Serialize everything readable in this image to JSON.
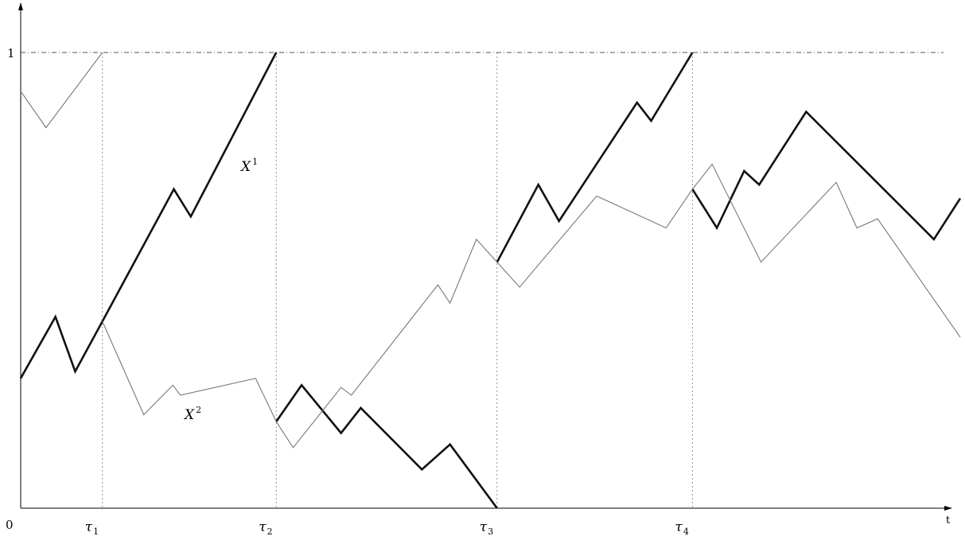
{
  "chart_data": {
    "type": "line",
    "xlabel": "t",
    "ylabel": "",
    "origin_label": "0",
    "y_tick_label": "1",
    "xlim": [
      0,
      1.0
    ],
    "ylim": [
      0,
      1.0
    ],
    "stopping_times": [
      {
        "label": "τ",
        "index": "1",
        "x": 0.087
      },
      {
        "label": "τ",
        "index": "2",
        "x": 0.272
      },
      {
        "label": "τ",
        "index": "3",
        "x": 0.507
      },
      {
        "label": "τ",
        "index": "4",
        "x": 0.715
      }
    ],
    "threshold_line": {
      "y": 1.0,
      "style": "dash-dot"
    },
    "series": [
      {
        "name": "X",
        "name_sup": "1",
        "style": "thick",
        "segments": [
          [
            [
              0.0,
              0.285
            ],
            [
              0.037,
              0.42
            ],
            [
              0.058,
              0.3
            ],
            [
              0.087,
              0.41
            ],
            [
              0.163,
              0.7
            ],
            [
              0.181,
              0.64
            ],
            [
              0.272,
              1.0
            ]
          ],
          [
            [
              0.272,
              0.19
            ],
            [
              0.299,
              0.27
            ],
            [
              0.341,
              0.165
            ],
            [
              0.362,
              0.22
            ],
            [
              0.427,
              0.085
            ],
            [
              0.457,
              0.14
            ],
            [
              0.507,
              0.0
            ]
          ],
          [
            [
              0.507,
              0.54
            ],
            [
              0.551,
              0.71
            ],
            [
              0.573,
              0.63
            ],
            [
              0.656,
              0.89
            ],
            [
              0.671,
              0.85
            ],
            [
              0.715,
              1.0
            ]
          ],
          [
            [
              0.715,
              0.7
            ],
            [
              0.741,
              0.615
            ],
            [
              0.77,
              0.74
            ],
            [
              0.786,
              0.71
            ],
            [
              0.836,
              0.87
            ],
            [
              0.972,
              0.59
            ],
            [
              1.0,
              0.68
            ]
          ]
        ]
      },
      {
        "name": "X",
        "name_sup": "2",
        "style": "thin",
        "segments": [
          [
            [
              0.0,
              0.915
            ],
            [
              0.027,
              0.835
            ],
            [
              0.087,
              1.0
            ]
          ],
          [
            [
              0.087,
              0.41
            ],
            [
              0.131,
              0.205
            ],
            [
              0.162,
              0.27
            ],
            [
              0.17,
              0.248
            ],
            [
              0.25,
              0.285
            ],
            [
              0.272,
              0.19
            ],
            [
              0.29,
              0.133
            ],
            [
              0.341,
              0.265
            ],
            [
              0.352,
              0.248
            ],
            [
              0.444,
              0.49
            ],
            [
              0.457,
              0.45
            ],
            [
              0.485,
              0.59
            ],
            [
              0.507,
              0.54
            ],
            [
              0.531,
              0.485
            ],
            [
              0.613,
              0.685
            ],
            [
              0.687,
              0.615
            ],
            [
              0.715,
              0.7
            ],
            [
              0.736,
              0.755
            ],
            [
              0.788,
              0.54
            ],
            [
              0.868,
              0.715
            ],
            [
              0.89,
              0.615
            ],
            [
              0.912,
              0.635
            ],
            [
              1.0,
              0.375
            ]
          ]
        ]
      }
    ]
  }
}
